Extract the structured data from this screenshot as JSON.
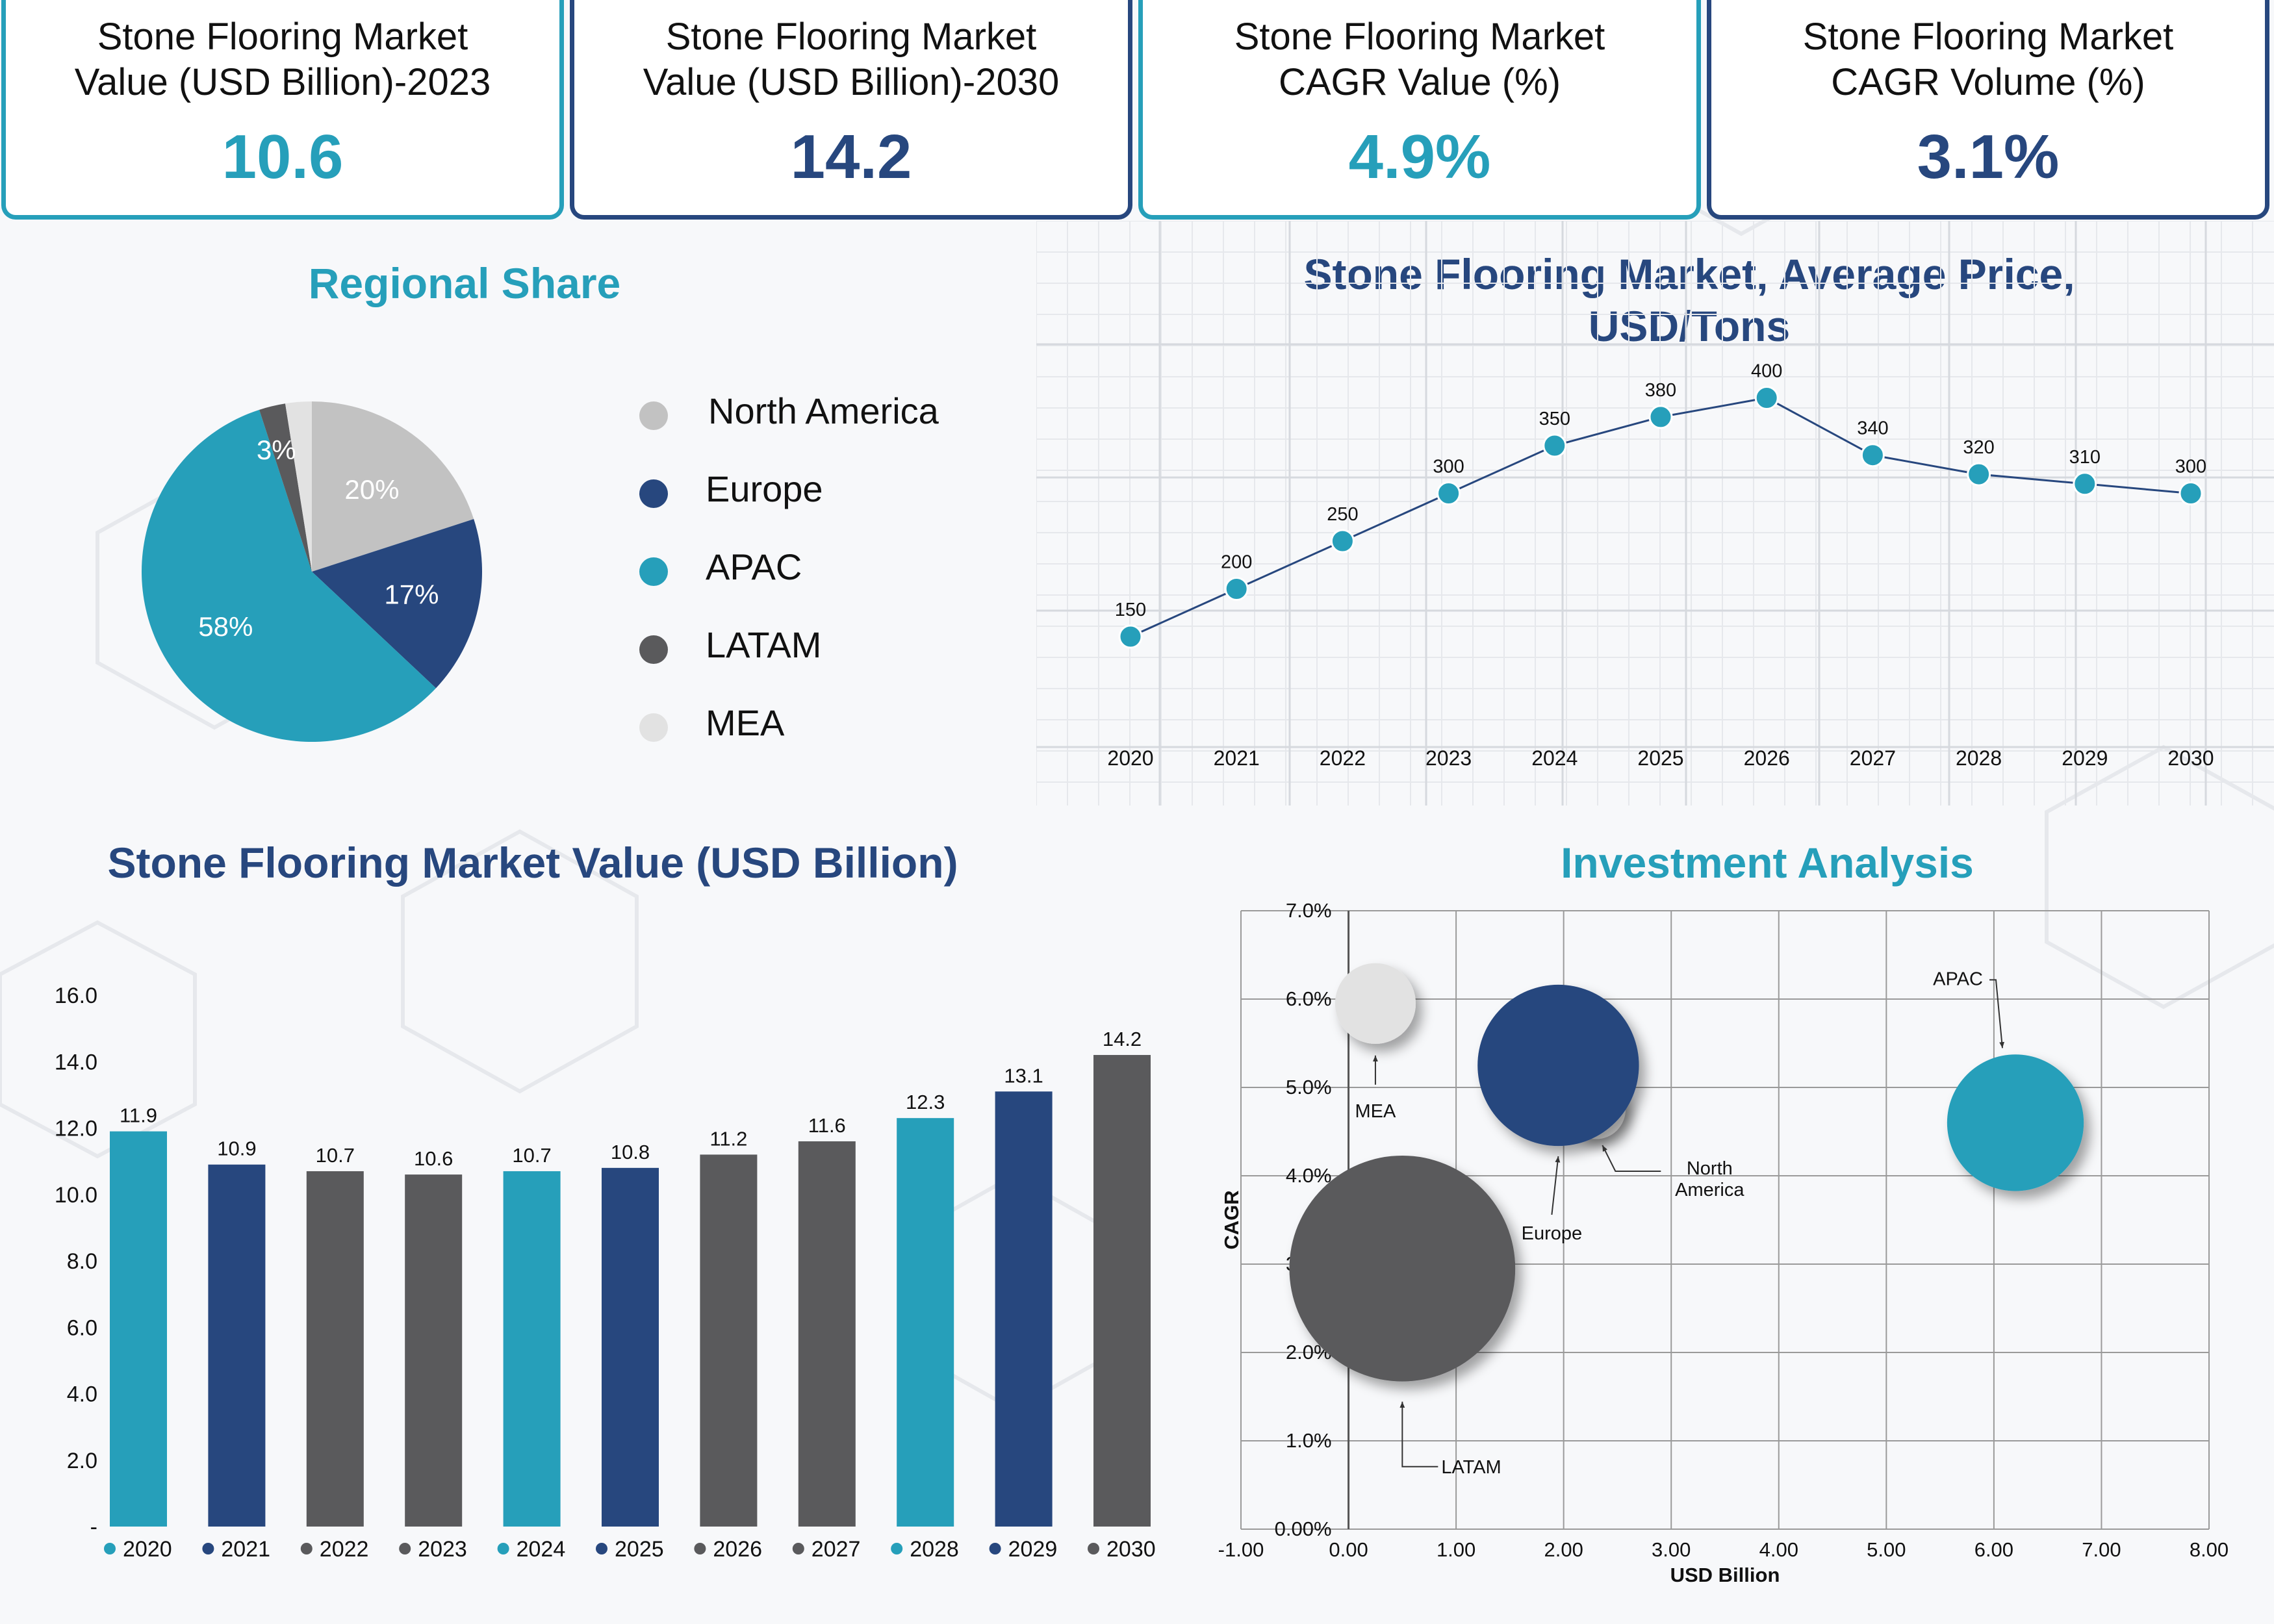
{
  "kpis": [
    {
      "label_line1": "Stone Flooring Market",
      "label_line2": "Value (USD Billion)-2023",
      "value": "10.6",
      "accent": "#269fba"
    },
    {
      "label_line1": "Stone Flooring Market",
      "label_line2": "Value (USD Billion)-2030",
      "value": "14.2",
      "accent": "#27477e"
    },
    {
      "label_line1": "Stone Flooring Market",
      "label_line2": "CAGR Value (%)",
      "value": "4.9%",
      "accent": "#269fba"
    },
    {
      "label_line1": "Stone Flooring Market",
      "label_line2": "CAGR Volume (%)",
      "value": "3.1%",
      "accent": "#27477e"
    }
  ],
  "colors": {
    "teal": "#269fba",
    "navy": "#27477e",
    "dark_gray": "#5a5a5c",
    "light_gray": "#c2c2c2",
    "pale_gray": "#e2e2e2"
  },
  "chart_data": [
    {
      "type": "pie",
      "title": "Regional Share",
      "slices": [
        {
          "label": "North America",
          "value": 20,
          "display": "20%",
          "color": "#c2c2c2"
        },
        {
          "label": "Europe",
          "value": 17,
          "display": "17%",
          "color": "#27477e"
        },
        {
          "label": "APAC",
          "value": 58,
          "display": "58%",
          "color": "#269fba"
        },
        {
          "label": "LATAM",
          "value": 2.5,
          "display": "",
          "color": "#5a5a5c"
        },
        {
          "label": "MEA",
          "value": 2.5,
          "display": "3%",
          "color": "#e2e2e2"
        }
      ],
      "legend": [
        "North America",
        "Europe",
        "APAC",
        "LATAM",
        "MEA"
      ],
      "legend_position": "right"
    },
    {
      "type": "line",
      "title_line1": "Stone Flooring Market, Average Price,",
      "title_line2": "USD/Tons",
      "x": [
        "2020",
        "2021",
        "2022",
        "2023",
        "2024",
        "2025",
        "2026",
        "2027",
        "2028",
        "2029",
        "2030"
      ],
      "y": [
        150,
        200,
        250,
        300,
        350,
        380,
        400,
        340,
        320,
        310,
        300
      ],
      "ylim": [
        0,
        450
      ],
      "grid": true
    },
    {
      "type": "bar",
      "title": "Stone Flooring Market Value (USD Billion)",
      "categories": [
        "2020",
        "2021",
        "2022",
        "2023",
        "2024",
        "2025",
        "2026",
        "2027",
        "2028",
        "2029",
        "2030"
      ],
      "values": [
        11.9,
        10.9,
        10.7,
        10.6,
        10.7,
        10.8,
        11.2,
        11.6,
        12.3,
        13.1,
        14.2
      ],
      "value_labels": [
        "11.9",
        "10.9",
        "10.7",
        "10.6",
        "10.7",
        "10.8",
        "11.2",
        "11.6",
        "12.3",
        "13.1",
        "14.2"
      ],
      "colors": [
        "#269fba",
        "#27477e",
        "#5a5a5c",
        "#5a5a5c",
        "#269fba",
        "#27477e",
        "#5a5a5c",
        "#5a5a5c",
        "#269fba",
        "#27477e",
        "#5a5a5c"
      ],
      "yticks": [
        "-",
        "2.0",
        "4.0",
        "6.0",
        "8.0",
        "10.0",
        "12.0",
        "14.0",
        "16.0"
      ],
      "ylim": [
        0,
        16
      ],
      "legend_position": "bottom"
    },
    {
      "type": "scatter",
      "title": "Investment Analysis",
      "xlabel": "USD Billion",
      "ylabel": "CAGR",
      "xlim": [
        -1,
        8
      ],
      "ylim": [
        0,
        7
      ],
      "xticks": [
        "-1.00",
        "0.00",
        "1.00",
        "2.00",
        "3.00",
        "4.00",
        "5.00",
        "6.00",
        "7.00",
        "8.00"
      ],
      "yticks": [
        "0.00%",
        "1.0%",
        "2.0%",
        "3.0%",
        "4.0%",
        "5.0%",
        "6.0%",
        "7.0%"
      ],
      "grid": true,
      "bubbles": [
        {
          "label": "North America",
          "label_line1": "North",
          "label_line2": "America",
          "x": 2.3,
          "y": 4.75,
          "size": 0.55,
          "color": "#e2e2e2"
        },
        {
          "label": "LATAM",
          "x": 0.5,
          "y": 2.95,
          "size": 2.1,
          "color": "#5a5a5c"
        },
        {
          "label": "MEA",
          "x": 0.25,
          "y": 5.95,
          "size": 0.75,
          "color": "#e2e2e2"
        },
        {
          "label": "Europe",
          "x": 1.95,
          "y": 5.25,
          "size": 1.5,
          "color": "#27477e"
        },
        {
          "label": "APAC",
          "x": 6.2,
          "y": 4.6,
          "size": 1.27,
          "color": "#269fba"
        }
      ]
    }
  ]
}
